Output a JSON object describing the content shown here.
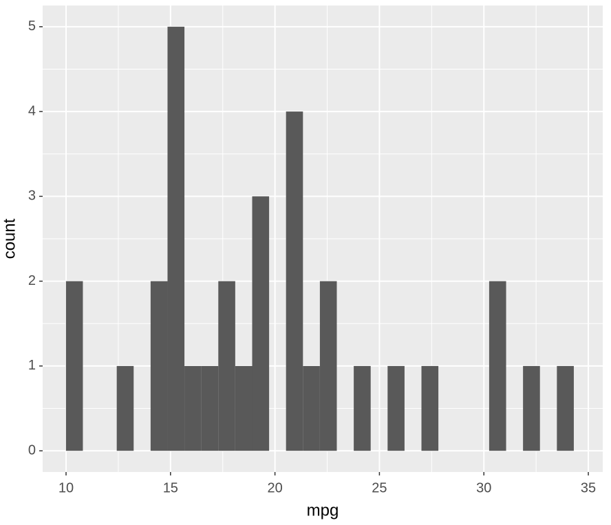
{
  "chart_data": {
    "type": "histogram",
    "x_label": "mpg",
    "y_label": "count",
    "bins": [
      9.995,
      10.805,
      11.616,
      12.426,
      13.236,
      14.047,
      14.857,
      15.667,
      16.478,
      17.288,
      18.098,
      18.909,
      19.719,
      20.529,
      21.34,
      22.15,
      22.96,
      23.771,
      24.581,
      25.391,
      26.202,
      27.012,
      27.822,
      28.633,
      29.443,
      30.253,
      31.064,
      31.874,
      32.684,
      33.495,
      34.305
    ],
    "values": [
      2,
      0,
      0,
      1,
      0,
      2,
      5,
      1,
      1,
      2,
      1,
      3,
      0,
      4,
      1,
      2,
      0,
      1,
      0,
      1,
      0,
      1,
      0,
      0,
      0,
      2,
      0,
      1,
      0,
      1
    ],
    "color": "#595959",
    "xlim": [
      8.88,
      35.69
    ],
    "xticks": [
      10,
      15,
      20,
      25,
      30,
      35
    ],
    "ylim": [
      -0.25,
      5.25
    ],
    "yticks": [
      0,
      1,
      2,
      3,
      4,
      5
    ],
    "grid": true
  }
}
